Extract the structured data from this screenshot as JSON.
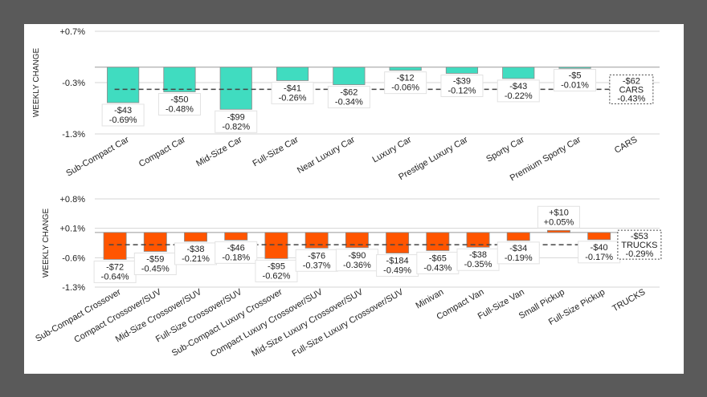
{
  "chart_data": [
    {
      "type": "bar",
      "name": "cars",
      "ylabel": "WEEKLY CHANGE",
      "ylim": [
        -1.3,
        0.7
      ],
      "yticks": [
        "+0.7%",
        "-0.3%",
        "-1.3%"
      ],
      "ytick_values": [
        0.7,
        -0.3,
        -1.3
      ],
      "grid": true,
      "bar_color": "#40dcc0",
      "categories": [
        "Sub-Compact Car",
        "Compact Car",
        "Mid-Size Car",
        "Full-Size Car",
        "Near Luxury Car",
        "Luxury Car",
        "Prestige Luxury Car",
        "Sporty Car",
        "Premium Sporty Car",
        "CARS"
      ],
      "values_pct": [
        -0.69,
        -0.48,
        -0.82,
        -0.26,
        -0.34,
        -0.06,
        -0.12,
        -0.22,
        -0.01,
        -0.43
      ],
      "values_usd": [
        -43,
        -50,
        -99,
        -41,
        -62,
        -12,
        -39,
        -43,
        -5,
        -62
      ],
      "labels_usd": [
        "-$43",
        "-$50",
        "-$99",
        "-$41",
        "-$62",
        "-$12",
        "-$39",
        "-$43",
        "-$5",
        "-$62"
      ],
      "labels_pct": [
        "-0.69%",
        "-0.48%",
        "-0.82%",
        "-0.26%",
        "-0.34%",
        "-0.06%",
        "-0.12%",
        "-0.22%",
        "-0.01%",
        "-0.43%"
      ],
      "total": {
        "label": "CARS",
        "usd": "-$62",
        "pct": "-0.43%",
        "value": -0.43
      }
    },
    {
      "type": "bar",
      "name": "trucks",
      "ylabel": "WEEKLY CHANGE",
      "ylim": [
        -1.3,
        0.8
      ],
      "yticks": [
        "+0.8%",
        "+0.1%",
        "-0.6%",
        "-1.3%"
      ],
      "ytick_values": [
        0.8,
        0.1,
        -0.6,
        -1.3
      ],
      "grid": true,
      "bar_color": "#ff5500",
      "categories": [
        "Sub-Compact Crossover",
        "Compact Crossover/SUV",
        "Mid-Size Crossover/SUV",
        "Full-Size Crossover/SUV",
        "Sub-Compact Luxury Crossover",
        "Compact Luxury Crossover/SUV",
        "Mid-Size Luxury Crossover/SUV",
        "Full-Size Luxury Crossover/SUV",
        "Minivan",
        "Compact Van",
        "Full-Size Van",
        "Small Pickup",
        "Full-Size Pickup",
        "TRUCKS"
      ],
      "values_pct": [
        -0.64,
        -0.45,
        -0.21,
        -0.18,
        -0.62,
        -0.37,
        -0.36,
        -0.49,
        -0.43,
        -0.35,
        -0.19,
        0.05,
        -0.17,
        -0.29
      ],
      "values_usd": [
        -72,
        -59,
        -38,
        -46,
        -95,
        -76,
        -90,
        -184,
        -65,
        -38,
        -34,
        10,
        -40,
        -53
      ],
      "labels_usd": [
        "-$72",
        "-$59",
        "-$38",
        "-$46",
        "-$95",
        "-$76",
        "-$90",
        "-$184",
        "-$65",
        "-$38",
        "-$34",
        "+$10",
        "-$40",
        "-$53"
      ],
      "labels_pct": [
        "-0.64%",
        "-0.45%",
        "-0.21%",
        "-0.18%",
        "-0.62%",
        "-0.37%",
        "-0.36%",
        "-0.49%",
        "-0.43%",
        "-0.35%",
        "-0.19%",
        "+0.05%",
        "-0.17%",
        "-0.29%"
      ],
      "total": {
        "label": "TRUCKS",
        "usd": "-$53",
        "pct": "-0.29%",
        "value": -0.29
      }
    }
  ]
}
